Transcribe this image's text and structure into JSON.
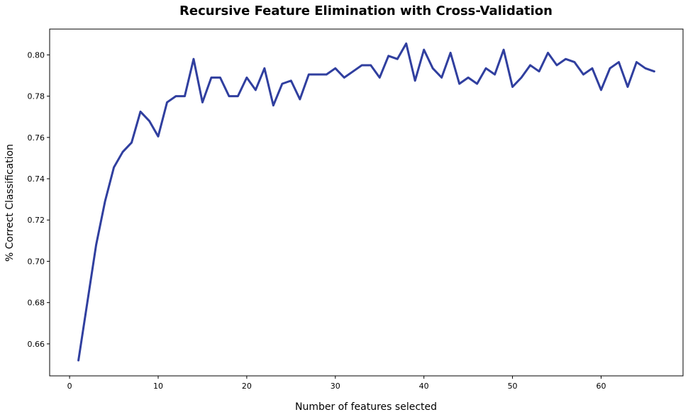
{
  "chart_data": {
    "type": "line",
    "title": "Recursive Feature Elimination with Cross-Validation",
    "xlabel": "Number of features selected",
    "ylabel": "% Correct Classification",
    "xlim": [
      -2.25,
      69.25
    ],
    "ylim": [
      0.6445,
      0.8125
    ],
    "xticks": [
      0,
      10,
      20,
      30,
      40,
      50,
      60
    ],
    "yticks": [
      0.66,
      0.68,
      0.7,
      0.72,
      0.74,
      0.76,
      0.78,
      0.8
    ],
    "ytick_labels": [
      "0.66",
      "0.68",
      "0.70",
      "0.72",
      "0.74",
      "0.76",
      "0.78",
      "0.80"
    ],
    "grid": false,
    "line_color": "#303F9F",
    "series": [
      {
        "x": [
          1,
          2,
          3,
          4,
          5,
          6,
          7,
          8,
          9,
          10,
          11,
          12,
          13,
          14,
          15,
          16,
          17,
          18,
          19,
          20,
          21,
          22,
          23,
          24,
          25,
          26,
          27,
          28,
          29,
          30,
          31,
          32,
          33,
          34,
          35,
          36,
          37,
          38,
          39,
          40,
          41,
          42,
          43,
          44,
          45,
          46,
          47,
          48,
          49,
          50,
          51,
          52,
          53,
          54,
          55,
          56,
          57,
          58,
          59,
          60,
          61,
          62,
          63,
          64,
          65,
          66
        ],
        "y": [
          0.652,
          0.68,
          0.708,
          0.729,
          0.7455,
          0.753,
          0.7575,
          0.7725,
          0.768,
          0.7605,
          0.777,
          0.78,
          0.78,
          0.798,
          0.777,
          0.789,
          0.789,
          0.78,
          0.78,
          0.789,
          0.783,
          0.7935,
          0.7755,
          0.786,
          0.7875,
          0.7785,
          0.7905,
          0.7905,
          0.7905,
          0.7935,
          0.789,
          0.792,
          0.795,
          0.795,
          0.789,
          0.7995,
          0.798,
          0.8055,
          0.7875,
          0.8025,
          0.7935,
          0.789,
          0.801,
          0.786,
          0.789,
          0.786,
          0.7935,
          0.7905,
          0.8025,
          0.7845,
          0.789,
          0.795,
          0.792,
          0.801,
          0.795,
          0.798,
          0.7965,
          0.7905,
          0.7935,
          0.783,
          0.7935,
          0.7965,
          0.7845,
          0.7965,
          0.7935,
          0.792
        ]
      }
    ]
  }
}
